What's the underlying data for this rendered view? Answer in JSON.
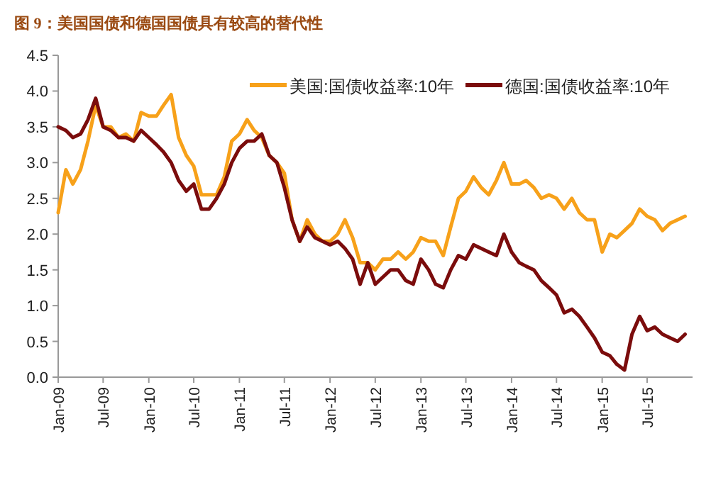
{
  "chart_data": {
    "type": "line",
    "title": "图 9：美国国债和德国国债具有较高的替代性",
    "x": [
      "2009-01",
      "2009-02",
      "2009-03",
      "2009-04",
      "2009-05",
      "2009-06",
      "2009-07",
      "2009-08",
      "2009-09",
      "2009-10",
      "2009-11",
      "2009-12",
      "2010-01",
      "2010-02",
      "2010-03",
      "2010-04",
      "2010-05",
      "2010-06",
      "2010-07",
      "2010-08",
      "2010-09",
      "2010-10",
      "2010-11",
      "2010-12",
      "2011-01",
      "2011-02",
      "2011-03",
      "2011-04",
      "2011-05",
      "2011-06",
      "2011-07",
      "2011-08",
      "2011-09",
      "2011-10",
      "2011-11",
      "2011-12",
      "2012-01",
      "2012-02",
      "2012-03",
      "2012-04",
      "2012-05",
      "2012-06",
      "2012-07",
      "2012-08",
      "2012-09",
      "2012-10",
      "2012-11",
      "2012-12",
      "2013-01",
      "2013-02",
      "2013-03",
      "2013-04",
      "2013-05",
      "2013-06",
      "2013-07",
      "2013-08",
      "2013-09",
      "2013-10",
      "2013-11",
      "2013-12",
      "2014-01",
      "2014-02",
      "2014-03",
      "2014-04",
      "2014-05",
      "2014-06",
      "2014-07",
      "2014-08",
      "2014-09",
      "2014-10",
      "2014-11",
      "2014-12",
      "2015-01",
      "2015-02",
      "2015-03",
      "2015-04",
      "2015-05",
      "2015-06",
      "2015-07",
      "2015-08",
      "2015-09",
      "2015-10",
      "2015-11",
      "2015-12"
    ],
    "series": [
      {
        "name": "美国:国债收益率:10年",
        "color": "#f7a11a",
        "values": [
          2.3,
          2.9,
          2.7,
          2.9,
          3.3,
          3.8,
          3.5,
          3.5,
          3.35,
          3.4,
          3.3,
          3.7,
          3.65,
          3.65,
          3.8,
          3.95,
          3.35,
          3.1,
          2.95,
          2.55,
          2.55,
          2.55,
          2.8,
          3.3,
          3.4,
          3.6,
          3.45,
          3.35,
          3.1,
          3.0,
          2.85,
          2.2,
          1.9,
          2.2,
          2.0,
          1.9,
          1.9,
          2.0,
          2.2,
          1.95,
          1.6,
          1.6,
          1.5,
          1.65,
          1.65,
          1.75,
          1.65,
          1.75,
          1.95,
          1.9,
          1.9,
          1.7,
          2.1,
          2.5,
          2.6,
          2.8,
          2.65,
          2.55,
          2.75,
          3.0,
          2.7,
          2.7,
          2.75,
          2.65,
          2.5,
          2.55,
          2.5,
          2.35,
          2.5,
          2.3,
          2.2,
          2.2,
          1.75,
          2.0,
          1.95,
          2.05,
          2.15,
          2.35,
          2.25,
          2.2,
          2.05,
          2.15,
          2.2,
          2.25
        ]
      },
      {
        "name": "德国:国债收益率:10年",
        "color": "#7b0c0c",
        "values": [
          3.5,
          3.45,
          3.35,
          3.4,
          3.6,
          3.9,
          3.5,
          3.45,
          3.35,
          3.35,
          3.3,
          3.45,
          3.35,
          3.25,
          3.15,
          3.0,
          2.75,
          2.6,
          2.7,
          2.35,
          2.35,
          2.5,
          2.7,
          3.0,
          3.2,
          3.3,
          3.3,
          3.4,
          3.1,
          3.0,
          2.65,
          2.2,
          1.9,
          2.1,
          1.95,
          1.9,
          1.85,
          1.9,
          1.8,
          1.65,
          1.3,
          1.6,
          1.3,
          1.4,
          1.5,
          1.5,
          1.35,
          1.3,
          1.65,
          1.5,
          1.3,
          1.25,
          1.5,
          1.7,
          1.65,
          1.85,
          1.8,
          1.75,
          1.7,
          2.0,
          1.75,
          1.6,
          1.55,
          1.5,
          1.35,
          1.25,
          1.15,
          0.9,
          0.95,
          0.85,
          0.7,
          0.55,
          0.35,
          0.3,
          0.18,
          0.1,
          0.6,
          0.85,
          0.65,
          0.7,
          0.6,
          0.55,
          0.5,
          0.6
        ]
      }
    ],
    "xlim": [
      "2009-01",
      "2015-12-31"
    ],
    "xticks": [
      {
        "value": "2009-01",
        "label": "Jan-09"
      },
      {
        "value": "2009-07",
        "label": "Jul-09"
      },
      {
        "value": "2010-01",
        "label": "Jan-10"
      },
      {
        "value": "2010-07",
        "label": "Jul-10"
      },
      {
        "value": "2011-01",
        "label": "Jan-11"
      },
      {
        "value": "2011-07",
        "label": "Jul-11"
      },
      {
        "value": "2012-01",
        "label": "Jan-12"
      },
      {
        "value": "2012-07",
        "label": "Jul-12"
      },
      {
        "value": "2013-01",
        "label": "Jan-13"
      },
      {
        "value": "2013-07",
        "label": "Jul-13"
      },
      {
        "value": "2014-01",
        "label": "Jan-14"
      },
      {
        "value": "2014-07",
        "label": "Jul-14"
      },
      {
        "value": "2015-01",
        "label": "Jan-15"
      },
      {
        "value": "2015-07",
        "label": "Jul-15"
      }
    ],
    "ylim": [
      0,
      4.5
    ],
    "yticks": [
      {
        "value": 0,
        "label": "0.0"
      },
      0.5,
      {
        "value": 1,
        "label": "1.0"
      },
      1.5,
      {
        "value": 2,
        "label": "2.0"
      },
      2.5,
      {
        "value": 3,
        "label": "3.0"
      },
      3.5,
      {
        "value": 4,
        "label": "4.0"
      },
      4.5
    ],
    "legend": "top right",
    "grid": false
  }
}
